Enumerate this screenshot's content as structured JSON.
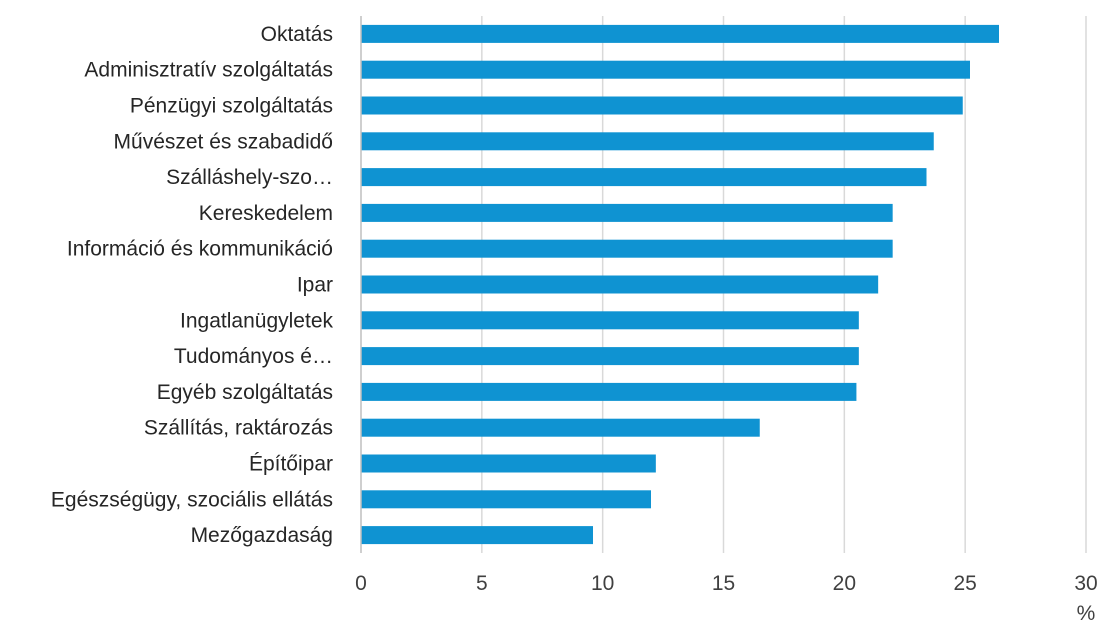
{
  "chart_data": {
    "type": "bar",
    "orientation": "horizontal",
    "categories": [
      "Oktatás",
      "Adminisztratív szolgáltatás",
      "Pénzügyi szolgáltatás",
      "Művészet és szabadidő",
      "Szálláshely-szo…",
      "Kereskedelem",
      "Információ és kommunikáció",
      "Ipar",
      "Ingatlanügyletek",
      "Tudományos é…",
      "Egyéb szolgáltatás",
      "Szállítás, raktározás",
      "Építőipar",
      "Egészségügy, szociális ellátás",
      "Mezőgazdaság"
    ],
    "values": [
      26.4,
      25.2,
      24.9,
      23.7,
      23.4,
      22.0,
      22.0,
      21.4,
      20.6,
      20.6,
      20.5,
      16.5,
      12.2,
      12.0,
      9.6
    ],
    "xlim": [
      0,
      30
    ],
    "xticks": [
      "0",
      "5",
      "10",
      "15",
      "20",
      "25",
      "30"
    ],
    "xlabel": "%",
    "grid": "vertical",
    "legend": "none",
    "colors": {
      "bar": "#0f93d2",
      "grid": "#d9d9d9",
      "axis": "#bfbfbf"
    }
  }
}
